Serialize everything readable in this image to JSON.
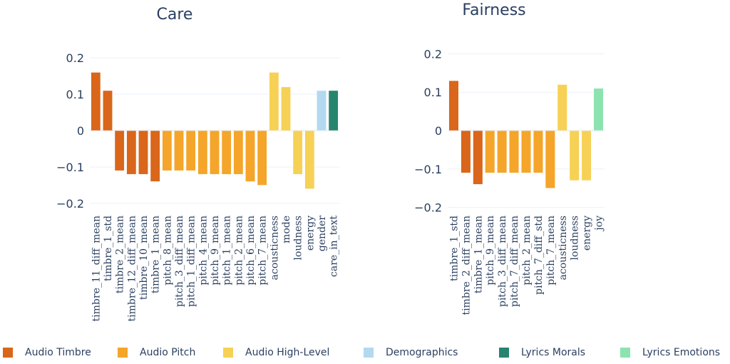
{
  "chart_data": [
    {
      "type": "bar",
      "title": "Care",
      "xlabel": "",
      "ylabel": "",
      "ylim": [
        -0.22,
        0.22
      ],
      "yticks": [
        0.2,
        0.1,
        0,
        -0.1,
        -0.2
      ],
      "ytick_labels": [
        "0.2",
        "0.1",
        "0",
        "−0.1",
        "−0.2"
      ],
      "grid": true,
      "categories": [
        "timbre_11_diff_mean",
        "timbre_1_std",
        "timbre_2_mean",
        "timbre_12_diff_mean",
        "timbre_10_mean",
        "timbre_1_mean",
        "pitch_8_mean",
        "pitch_3_diff_mean",
        "pitch_1_diff_mean",
        "pitch_4_mean",
        "pitch_9_mean",
        "pitch_1_mean",
        "pitch_2_mean",
        "pitch_6_mean",
        "pitch_7_mean",
        "acousticness",
        "mode",
        "loudness",
        "energy",
        "gender",
        "care_in_text"
      ],
      "values": [
        0.16,
        0.11,
        -0.11,
        -0.12,
        -0.12,
        -0.14,
        -0.11,
        -0.11,
        -0.11,
        -0.12,
        -0.12,
        -0.12,
        -0.12,
        -0.14,
        -0.15,
        0.16,
        0.12,
        -0.12,
        -0.16,
        0.11,
        0.11
      ],
      "groups": [
        "Audio Timbre",
        "Audio Timbre",
        "Audio Timbre",
        "Audio Timbre",
        "Audio Timbre",
        "Audio Timbre",
        "Audio Pitch",
        "Audio Pitch",
        "Audio Pitch",
        "Audio Pitch",
        "Audio Pitch",
        "Audio Pitch",
        "Audio Pitch",
        "Audio Pitch",
        "Audio Pitch",
        "Audio High-Level",
        "Audio High-Level",
        "Audio High-Level",
        "Audio High-Level",
        "Demographics",
        "Lyrics Morals"
      ]
    },
    {
      "type": "bar",
      "title": "Fairness",
      "xlabel": "",
      "ylabel": "",
      "ylim": [
        -0.22,
        0.22
      ],
      "yticks": [
        0.2,
        0.1,
        0,
        -0.1,
        -0.2
      ],
      "ytick_labels": [
        "0.2",
        "0.1",
        "0",
        "−0.1",
        "−0.2"
      ],
      "grid": true,
      "categories": [
        "timbre_1_std",
        "timbre_2_diff_mean",
        "timbre_1_mean",
        "pitch_9_mean",
        "pitch_3_diff_mean",
        "pitch_7_diff_mean",
        "pitch_2_mean",
        "pitch_7_diff_std",
        "pitch_7_mean",
        "acousticness",
        "loudness",
        "energy",
        "joy"
      ],
      "values": [
        0.13,
        -0.11,
        -0.14,
        -0.11,
        -0.11,
        -0.11,
        -0.11,
        -0.11,
        -0.15,
        0.12,
        -0.13,
        -0.13,
        0.11
      ],
      "groups": [
        "Audio Timbre",
        "Audio Timbre",
        "Audio Timbre",
        "Audio Pitch",
        "Audio Pitch",
        "Audio Pitch",
        "Audio Pitch",
        "Audio Pitch",
        "Audio Pitch",
        "Audio High-Level",
        "Audio High-Level",
        "Audio High-Level",
        "Lyrics Emotions"
      ]
    }
  ],
  "legend": {
    "placement": "bottom",
    "items": [
      {
        "label": "Audio Timbre",
        "color": "#d9661a"
      },
      {
        "label": "Audio Pitch",
        "color": "#f4a52a"
      },
      {
        "label": "Audio High-Level",
        "color": "#f6d155"
      },
      {
        "label": "Demographics",
        "color": "#b3d9f1"
      },
      {
        "label": "Lyrics Morals",
        "color": "#26856f"
      },
      {
        "label": "Lyrics Emotions",
        "color": "#8ce3b0"
      }
    ]
  }
}
